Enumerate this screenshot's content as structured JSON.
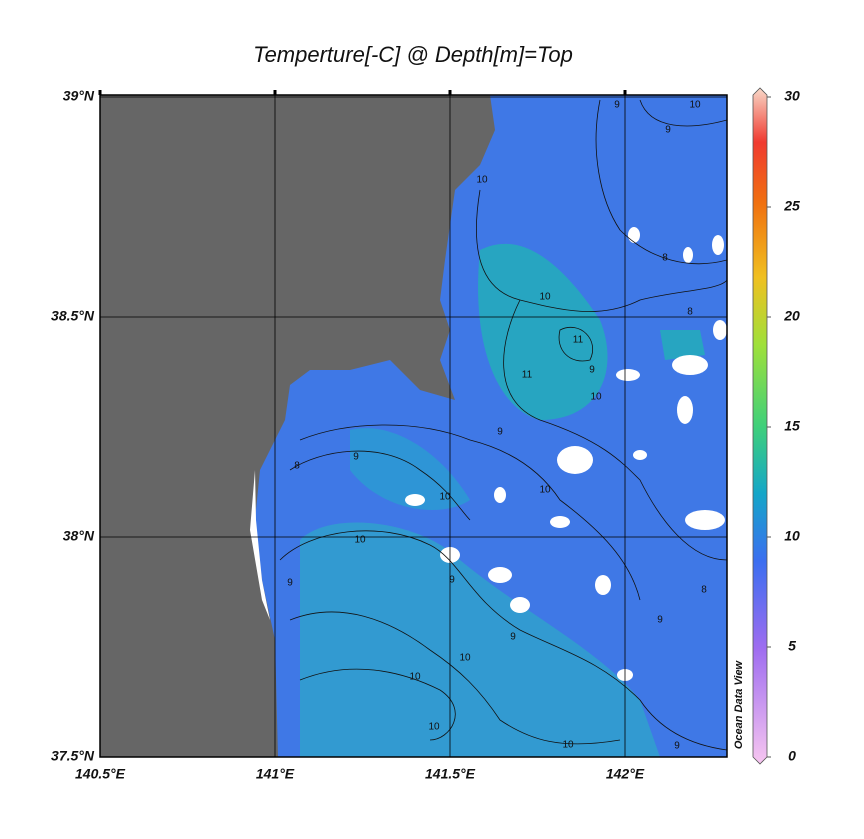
{
  "title": "Temperture[-C] @ Depth[m]=Top",
  "map": {
    "lonlim": [
      140.5,
      142.3
    ],
    "latlim": [
      37.5,
      39
    ],
    "lonticks": [
      {
        "value": 140.5,
        "label": "140.5°E"
      },
      {
        "value": 141,
        "label": "141°E"
      },
      {
        "value": 141.5,
        "label": "141.5°E"
      },
      {
        "value": 142,
        "label": "142°E"
      }
    ],
    "latticks": [
      {
        "value": 37.5,
        "label": "37.5°N"
      },
      {
        "value": 38,
        "label": "38°N"
      },
      {
        "value": 38.5,
        "label": "38.5°N"
      },
      {
        "value": 39,
        "label": "39°N"
      }
    ],
    "contour_labels": [
      "10",
      "11",
      "11",
      "9",
      "8",
      "9",
      "10",
      "10",
      "9",
      "9",
      "9",
      "10",
      "10",
      "10",
      "10",
      "10",
      "10",
      "9",
      "9",
      "8",
      "10",
      "9",
      "8",
      "8",
      "9",
      "9",
      "10"
    ]
  },
  "colorbar": {
    "lim": [
      0,
      30
    ],
    "ticks": [
      0,
      5,
      10,
      15,
      20,
      25,
      30
    ],
    "credit": "Ocean Data View"
  }
}
